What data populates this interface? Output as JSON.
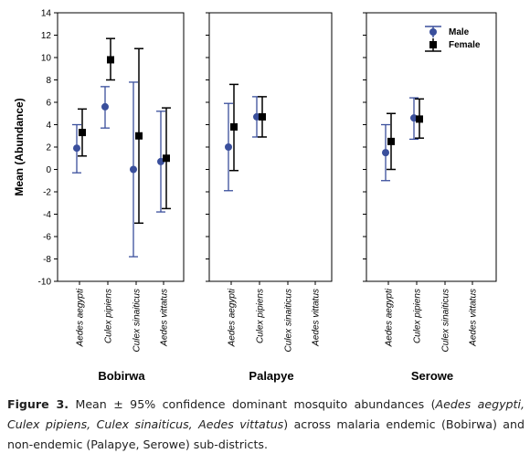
{
  "chart_data": {
    "type": "scatter",
    "ylabel": "Mean (Abundance)",
    "ylim": [
      -10,
      14
    ],
    "yticks": [
      -10,
      -8,
      -6,
      -4,
      -2,
      0,
      2,
      4,
      6,
      8,
      10,
      12,
      14
    ],
    "categories": [
      "Aedes aegypti",
      "Culex pipiens",
      "Culex sinaiticus",
      "Aedes vittatus"
    ],
    "legend": {
      "placement": "top-right of last panel",
      "entries": [
        "Male",
        "Female"
      ]
    },
    "colors": {
      "male": "#3a4f9c",
      "female": "#000000"
    },
    "panels": [
      {
        "name": "Bobirwa",
        "series": [
          {
            "name": "Male",
            "points": [
              {
                "category": "Aedes aegypti",
                "mean": 1.9,
                "lower": -0.3,
                "upper": 4.0
              },
              {
                "category": "Culex pipiens",
                "mean": 5.6,
                "lower": 3.7,
                "upper": 7.4
              },
              {
                "category": "Culex sinaiticus",
                "mean": 0.0,
                "lower": -7.8,
                "upper": 7.8
              },
              {
                "category": "Aedes vittatus",
                "mean": 0.7,
                "lower": -3.8,
                "upper": 5.2
              }
            ]
          },
          {
            "name": "Female",
            "points": [
              {
                "category": "Aedes aegypti",
                "mean": 3.3,
                "lower": 1.2,
                "upper": 5.4
              },
              {
                "category": "Culex pipiens",
                "mean": 9.8,
                "lower": 8.0,
                "upper": 11.7
              },
              {
                "category": "Culex sinaiticus",
                "mean": 3.0,
                "lower": -4.8,
                "upper": 10.8
              },
              {
                "category": "Aedes vittatus",
                "mean": 1.0,
                "lower": -3.5,
                "upper": 5.5
              }
            ]
          }
        ]
      },
      {
        "name": "Palapye",
        "series": [
          {
            "name": "Male",
            "points": [
              {
                "category": "Aedes aegypti",
                "mean": 2.0,
                "lower": -1.9,
                "upper": 5.9
              },
              {
                "category": "Culex pipiens",
                "mean": 4.7,
                "lower": 2.9,
                "upper": 6.5
              }
            ]
          },
          {
            "name": "Female",
            "points": [
              {
                "category": "Aedes aegypti",
                "mean": 3.8,
                "lower": -0.1,
                "upper": 7.6
              },
              {
                "category": "Culex pipiens",
                "mean": 4.7,
                "lower": 2.9,
                "upper": 6.5
              }
            ]
          }
        ]
      },
      {
        "name": "Serowe",
        "series": [
          {
            "name": "Male",
            "points": [
              {
                "category": "Aedes aegypti",
                "mean": 1.5,
                "lower": -1.0,
                "upper": 4.0
              },
              {
                "category": "Culex pipiens",
                "mean": 4.6,
                "lower": 2.7,
                "upper": 6.4
              }
            ]
          },
          {
            "name": "Female",
            "points": [
              {
                "category": "Aedes aegypti",
                "mean": 2.5,
                "lower": 0.0,
                "upper": 5.0
              },
              {
                "category": "Culex pipiens",
                "mean": 4.5,
                "lower": 2.8,
                "upper": 6.3
              }
            ]
          }
        ]
      }
    ]
  },
  "caption": {
    "label": "Figure 3.",
    "text": " Mean ± 95% confidence dominant mosquito abundances (",
    "species_list": "Aedes aegypti, Culex pipiens, Culex sinaiticus, Aedes vittatus",
    "text_end": ") across malaria endemic (Bobirwa) and non-endemic (Palapye, Serowe) sub-districts."
  }
}
